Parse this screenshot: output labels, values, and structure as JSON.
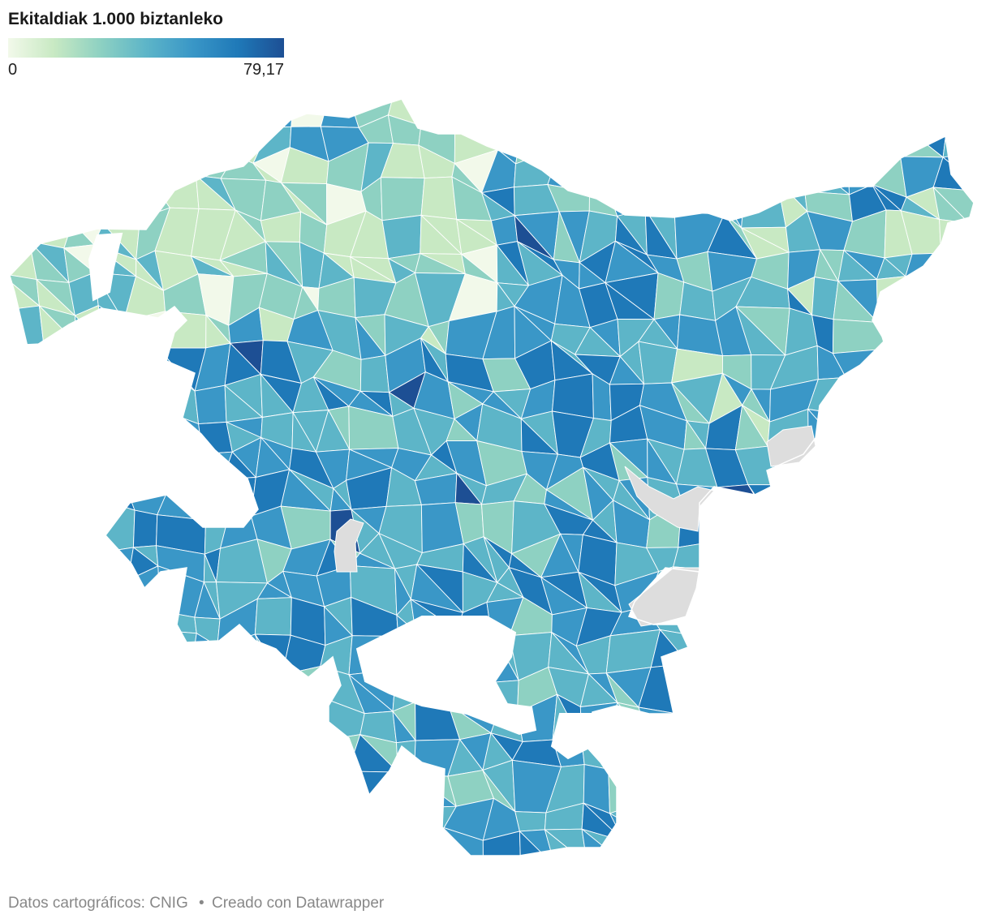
{
  "title": "Ekitaldiak 1.000 biztanleko",
  "legend": {
    "min_label": "0",
    "max_label": "79,17",
    "colors": [
      "#f2f9ea",
      "#c8e9c3",
      "#8ed1c2",
      "#5db5c8",
      "#3a97c7",
      "#1f79b8",
      "#1d4f94"
    ]
  },
  "map": {
    "no_data_color": "#dddddd",
    "border_color": "#ffffff"
  },
  "footer": {
    "source": "Datos cartográficos: CNIG",
    "separator": "•",
    "credit": "Creado con Datawrapper"
  }
}
